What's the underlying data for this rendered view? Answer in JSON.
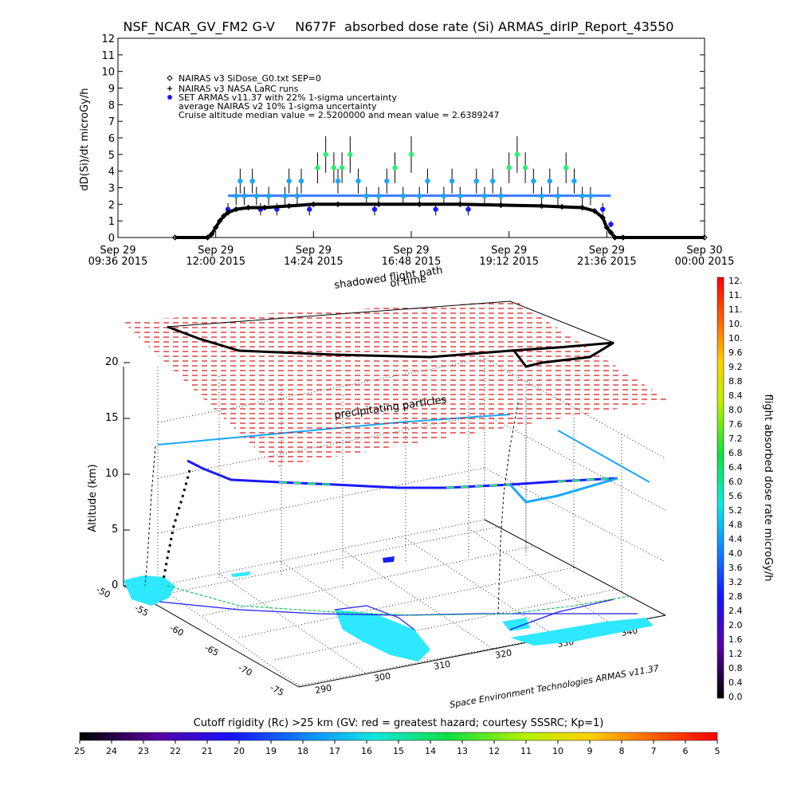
{
  "title": "NSF_NCAR_GV_FM2 G-V     N677F  absorbed dose rate (Si) ARMAS_dirIP_Report_43550",
  "chart_data": [
    {
      "type": "scatter",
      "ylabel": "dD(Si)/dt microGy/h",
      "ylim": [
        0,
        12
      ],
      "yticks": [
        "0",
        "1",
        "2",
        "3",
        "4",
        "5",
        "6",
        "7",
        "8",
        "9",
        "10",
        "11",
        "12"
      ],
      "xlim_hours": [
        9.6,
        24.0
      ],
      "xticks": [
        {
          "hour": 9.6,
          "line1": "Sep 29",
          "line2": "09:36 2015"
        },
        {
          "hour": 12.0,
          "line1": "Sep 29",
          "line2": "12:00 2015"
        },
        {
          "hour": 14.4,
          "line1": "Sep 29",
          "line2": "14:24 2015"
        },
        {
          "hour": 16.8,
          "line1": "Sep 29",
          "line2": "16:48 2015"
        },
        {
          "hour": 19.2,
          "line1": "Sep 29",
          "line2": "19:12 2015"
        },
        {
          "hour": 21.6,
          "line1": "Sep 29",
          "line2": "21:36 2015"
        },
        {
          "hour": 24.0,
          "line1": "Sep 30",
          "line2": "00:00 2015"
        }
      ],
      "legend": [
        {
          "symbol": "diamond",
          "label": "NAIRAS v3 SiDose_G0.txt SEP=0"
        },
        {
          "symbol": "plus",
          "label": "NAIRAS v3 NASA LaRC runs"
        },
        {
          "symbol": "dot",
          "label": "SET ARMAS v11.37 with 22% 1-sigma uncertainty"
        },
        {
          "symbol": "none",
          "label": "average NAIRAS v2 10% 1-sigma uncertainty"
        },
        {
          "symbol": "none",
          "label": "Cruise altitude median value = 2.5200000 and mean value = 2.6389247"
        }
      ],
      "series": [
        {
          "name": "NAIRAS v3 SiDose_G0.txt SEP=0",
          "x_hours": [
            11.0,
            11.8,
            11.9,
            12.0,
            12.1,
            12.2,
            12.3,
            12.5,
            12.8,
            13.2,
            13.8,
            14.4,
            15.0,
            16.0,
            17.0,
            18.0,
            19.0,
            20.0,
            20.5,
            21.0,
            21.3,
            21.5,
            21.6,
            21.7,
            21.8,
            22.0,
            24.0
          ],
          "values": [
            0.0,
            0.0,
            0.2,
            0.6,
            1.0,
            1.3,
            1.5,
            1.7,
            1.8,
            1.8,
            1.9,
            2.0,
            2.0,
            2.0,
            2.0,
            2.0,
            1.95,
            1.9,
            1.85,
            1.8,
            1.6,
            1.2,
            0.6,
            0.3,
            0.0,
            0.0,
            0.0
          ]
        },
        {
          "name": "SET ARMAS v11.37 with 22% 1-sigma uncertainty",
          "x_hours": [
            12.3,
            12.5,
            12.6,
            12.7,
            12.9,
            13.0,
            13.1,
            13.3,
            13.5,
            13.7,
            13.8,
            14.0,
            14.1,
            14.3,
            14.5,
            14.7,
            14.9,
            15.0,
            15.1,
            15.3,
            15.5,
            15.7,
            15.9,
            16.0,
            16.2,
            16.4,
            16.6,
            16.8,
            17.0,
            17.2,
            17.4,
            17.6,
            17.8,
            18.0,
            18.2,
            18.4,
            18.6,
            18.8,
            19.0,
            19.2,
            19.4,
            19.6,
            19.8,
            20.0,
            20.2,
            20.4,
            20.6,
            20.8,
            21.0,
            21.2,
            21.5,
            21.7
          ],
          "values": [
            1.7,
            2.5,
            3.4,
            2.5,
            3.4,
            2.5,
            1.7,
            2.5,
            1.7,
            2.5,
            3.4,
            2.5,
            3.4,
            1.7,
            4.2,
            5.0,
            4.2,
            3.4,
            4.2,
            5.0,
            3.4,
            2.5,
            1.7,
            2.5,
            3.4,
            4.2,
            2.5,
            5.0,
            2.5,
            3.4,
            1.7,
            2.5,
            3.4,
            2.5,
            1.7,
            3.4,
            2.5,
            3.4,
            2.5,
            4.2,
            5.0,
            4.2,
            3.4,
            2.5,
            3.4,
            2.5,
            4.2,
            3.4,
            2.5,
            2.5,
            1.7,
            0.8
          ]
        }
      ],
      "median_line_value": 2.52
    },
    {
      "type": "3d-map",
      "ylabel": "Altitude (km)",
      "zticks": [
        "0",
        "5",
        "10",
        "15",
        "20"
      ],
      "latitude_ticks": [
        "-50",
        "-55",
        "-60",
        "-65",
        "-70",
        "-75"
      ],
      "longitude_ticks": [
        "290",
        "300",
        "310",
        "320",
        "330",
        "340"
      ],
      "label_shadowed": "shadowed flight path",
      "label_time": "of time",
      "label_particles": "precipitating particles",
      "credit": "Space Environment Technologies ARMAS v11.37"
    },
    {
      "type": "colorbar",
      "orientation": "vertical",
      "label": "flight absorbed dose rate microGy/h",
      "ticks": [
        "12.",
        "11.",
        "11.",
        "10.",
        "10.",
        "9.6",
        "9.2",
        "8.8",
        "8.4",
        "8.0",
        "7.6",
        "7.2",
        "6.8",
        "6.4",
        "6.0",
        "5.6",
        "5.2",
        "4.8",
        "4.4",
        "4.0",
        "3.6",
        "3.2",
        "2.8",
        "2.4",
        "2.0",
        "1.6",
        "1.2",
        "0.8",
        "0.4",
        "0.0"
      ]
    },
    {
      "type": "colorbar",
      "orientation": "horizontal",
      "label": "Cutoff rigidity (Rc) >25 km (GV: red = greatest hazard; courtesy SSSRC; Kp=1)",
      "ticks": [
        "25",
        "24",
        "23",
        "22",
        "21",
        "20",
        "19",
        "18",
        "17",
        "16",
        "15",
        "14",
        "13",
        "12",
        "11",
        "10",
        "9",
        "8",
        "7",
        "6",
        "5"
      ]
    }
  ],
  "colors": {
    "nairas": "#000000",
    "armas_low": "#1a1aff",
    "armas_mid": "#19a7ff",
    "armas_high": "#2af070",
    "median": "#3f7fff",
    "particles": "#e01010",
    "rigidity": "#2ee8ff"
  }
}
